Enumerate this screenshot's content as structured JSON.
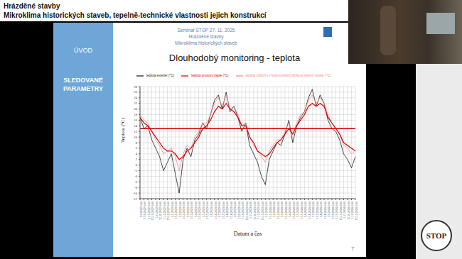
{
  "header": {
    "line1": "Hrázděné stavby",
    "line2": "Mikroklima historických staveb, tepelně-technické vlastnosti jejich konstrukcí"
  },
  "slide": {
    "sidebar_top": "ÚVOD",
    "sidebar_section": "SLEDOVANÉ PARAMETRY",
    "seminar_lines": [
      "Seminář STOP 27. 11. 2025",
      "Hrázděné stavby",
      "Mikroklima historických staveb"
    ],
    "title": "Dlouhodobý monitoring - teplota",
    "page_number": "7",
    "logo_text": "STOP"
  },
  "chart_data": {
    "type": "line",
    "x_label": "Datum a čas",
    "y_label": "Teplota (°C)",
    "categories": [
      "1.9.2022 0:00",
      "15.9.2022 0:00",
      "1.10.2022 0:00",
      "15.10.2022 0:00",
      "1.11.2022 0:00",
      "15.11.2022 0:00",
      "1.12.2022 0:00",
      "15.12.2022 0:00",
      "1.1.2023 0:00",
      "15.1.2023 0:00",
      "1.2.2023 0:00",
      "15.2.2023 0:00",
      "1.3.2023 0:00",
      "15.3.2023 0:00",
      "1.4.2023 0:00",
      "15.4.2023 0:00",
      "1.5.2023 0:00",
      "15.5.2023 0:00",
      "1.6.2023 0:00",
      "15.6.2023 0:00",
      "1.7.2023 0:00",
      "15.7.2023 0:00",
      "1.8.2023 0:00",
      "15.8.2023 0:00",
      "1.9.2023 0:00",
      "15.9.2023 0:00",
      "1.10.2023 0:00",
      "15.10.2023 0:00",
      "1.11.2023 0:00",
      "15.11.2023 0:00",
      "1.12.2023 0:00",
      "15.12.2023 0:00",
      "1.1.2024 0:00",
      "15.1.2024 0:00",
      "1.2.2024 0:00",
      "15.2.2024 0:00",
      "1.3.2024 0:00",
      "15.3.2024 0:00",
      "1.4.2024 0:00",
      "15.4.2024 0:00",
      "1.5.2024 0:00",
      "15.5.2024 0:00",
      "1.6.2024 0:00",
      "15.6.2024 0:00",
      "1.7.2024 0:00",
      "15.7.2024 0:00",
      "1.8.2024 0:00",
      "15.8.2024 0:00",
      "1.9.2024 0:00",
      "15.9.2024 0:00",
      "1.10.2024 0:00",
      "15.10.2024 0:00",
      "1.11.2024 0:00",
      "15.11.2024 0:00",
      "1.12.2024 0:00",
      "15.12.2024 0:00"
    ],
    "series": [
      {
        "name": "teplota exteriér (°C)",
        "color": "#1a1a1a",
        "values": [
          17,
          13,
          14,
          9,
          6,
          3,
          -2,
          1,
          4,
          -3,
          -10,
          2,
          6,
          3,
          9,
          11,
          15,
          13,
          18,
          23,
          25,
          20,
          26,
          19,
          21,
          17,
          12,
          15,
          7,
          4,
          1,
          -4,
          -7,
          2,
          5,
          8,
          7,
          11,
          16,
          8,
          14,
          17,
          19,
          24,
          27,
          21,
          25,
          22,
          16,
          13,
          12,
          9,
          4,
          2,
          -1,
          3
        ]
      },
      {
        "name": "teplota vzduchu v bezprostřední blízkosti okenní výplně (°C)",
        "color": "#f08a8a",
        "values": [
          18,
          16,
          15,
          12,
          9,
          7,
          4,
          5,
          6,
          3,
          -2,
          4,
          7,
          6,
          10,
          12,
          15,
          15,
          18,
          22,
          24,
          21,
          25,
          20,
          21,
          18,
          14,
          15,
          10,
          7,
          5,
          3,
          1,
          5,
          7,
          9,
          9,
          12,
          15,
          11,
          15,
          18,
          19,
          23,
          25,
          22,
          24,
          22,
          18,
          15,
          13,
          11,
          7,
          6,
          4,
          5
        ]
      },
      {
        "name": "teplota prostoru kaple (°C)",
        "color": "#e00000",
        "values": [
          17,
          15,
          14,
          12,
          10,
          8,
          6,
          5,
          5,
          4,
          2,
          3,
          5,
          6,
          8,
          10,
          13,
          14,
          16,
          19,
          21,
          20,
          22,
          20,
          19,
          17,
          14,
          14,
          10,
          8,
          5,
          4,
          3,
          4,
          6,
          8,
          9,
          11,
          13,
          11,
          14,
          16,
          18,
          21,
          22,
          21,
          22,
          21,
          17,
          15,
          13,
          11,
          8,
          7,
          6,
          5
        ]
      }
    ],
    "reference_line": {
      "y": 13,
      "color": "#d40000"
    },
    "ylim": [
      -12,
      28
    ],
    "yticks": [
      -12,
      -10,
      -8,
      -6,
      -4,
      -2,
      0,
      2,
      4,
      6,
      8,
      10,
      12,
      14,
      16,
      18,
      20,
      22,
      24,
      26,
      28
    ],
    "grid": true,
    "legend": "top"
  }
}
